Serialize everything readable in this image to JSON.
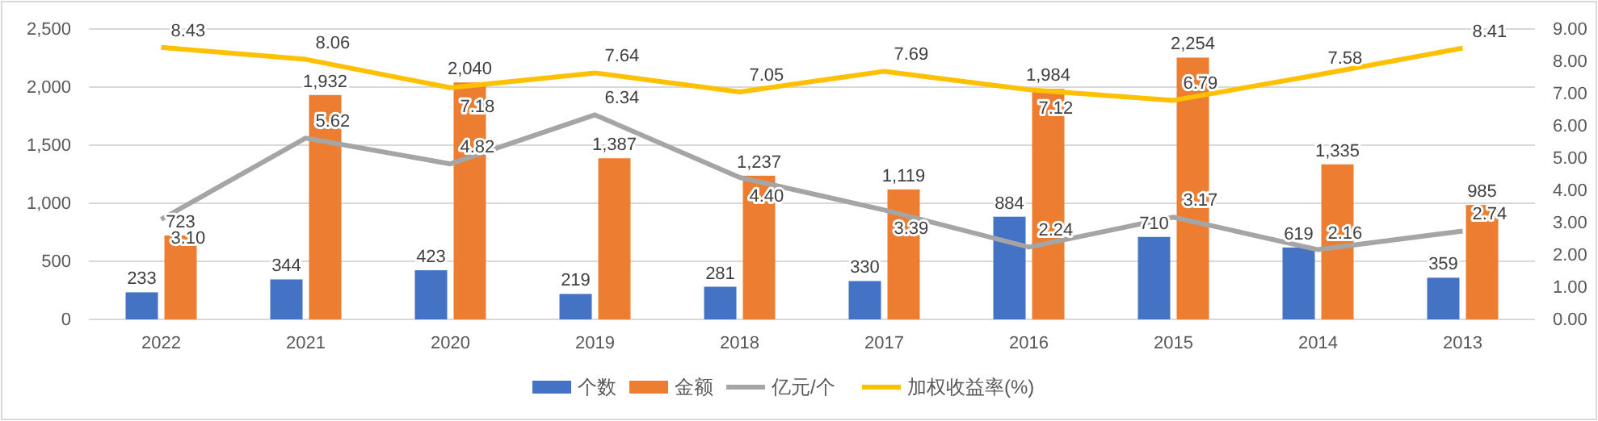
{
  "chart_data": {
    "type": "bar",
    "categories": [
      "2022",
      "2021",
      "2020",
      "2019",
      "2018",
      "2017",
      "2016",
      "2015",
      "2014",
      "2013"
    ],
    "series": [
      {
        "name": "个数",
        "color": "#4472c4",
        "values": [
          233,
          344,
          423,
          219,
          281,
          330,
          884,
          710,
          619,
          359
        ],
        "value_labels": [
          "233",
          "344",
          "423",
          "219",
          "281",
          "330",
          "884",
          "710",
          "619",
          "359"
        ]
      },
      {
        "name": "金额",
        "color": "#ed7d31",
        "values": [
          723,
          1932,
          2040,
          1387,
          1237,
          1119,
          1984,
          2254,
          1335,
          985
        ],
        "value_labels": [
          "723",
          "1,932",
          "2,040",
          "1,387",
          "1,237",
          "1,119",
          "1,984",
          "2,254",
          "1,335",
          "985"
        ]
      },
      {
        "name": "亿元/个",
        "type": "line",
        "axis": "y2",
        "color": "#a5a5a5",
        "values": [
          3.1,
          5.62,
          4.82,
          6.34,
          4.4,
          3.39,
          2.24,
          3.17,
          2.16,
          2.74
        ],
        "value_labels": [
          "3.10",
          "5.62",
          "4.82",
          "6.34",
          "4.40",
          "3.39",
          "2.24",
          "3.17",
          "2.16",
          "2.74"
        ]
      },
      {
        "name": "加权收益率(%)",
        "type": "line",
        "axis": "y2",
        "color": "#ffc000",
        "values": [
          8.43,
          8.06,
          7.18,
          7.64,
          7.05,
          7.69,
          7.12,
          6.79,
          7.58,
          8.41
        ],
        "value_labels": [
          "8.43",
          "8.06",
          "7.18",
          "7.64",
          "7.05",
          "7.69",
          "7.12",
          "6.79",
          "7.58",
          "8.41"
        ]
      }
    ],
    "ylim": [
      0,
      2500
    ],
    "yticks": [
      {
        "value": 0,
        "label": "0"
      },
      {
        "value": 500,
        "label": "500"
      },
      {
        "value": 1000,
        "label": "1,000"
      },
      {
        "value": 1500,
        "label": "1,500"
      },
      {
        "value": 2000,
        "label": "2,000"
      },
      {
        "value": 2500,
        "label": "2,500"
      }
    ],
    "y2lim": [
      0,
      9
    ],
    "y2ticks": [
      {
        "value": 0,
        "label": "0.00"
      },
      {
        "value": 1,
        "label": "1.00"
      },
      {
        "value": 2,
        "label": "2.00"
      },
      {
        "value": 3,
        "label": "3.00"
      },
      {
        "value": 4,
        "label": "4.00"
      },
      {
        "value": 5,
        "label": "5.00"
      },
      {
        "value": 6,
        "label": "6.00"
      },
      {
        "value": 7,
        "label": "7.00"
      },
      {
        "value": 8,
        "label": "8.00"
      },
      {
        "value": 9,
        "label": "9.00"
      }
    ],
    "grid": "y",
    "legend": "bottom",
    "marker": "none"
  }
}
